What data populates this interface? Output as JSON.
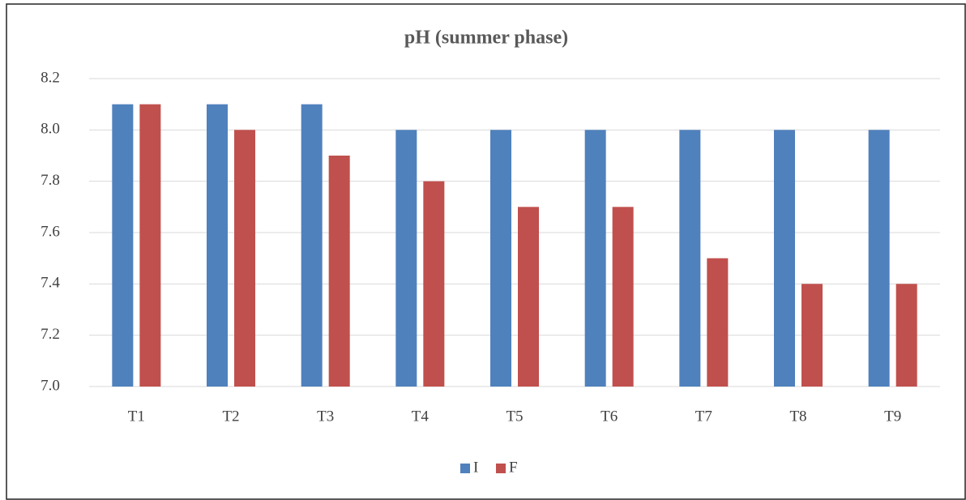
{
  "chart_data": {
    "type": "bar",
    "title": "pH (summer phase)",
    "categories": [
      "T1",
      "T2",
      "T3",
      "T4",
      "T5",
      "T6",
      "T7",
      "T8",
      "T9"
    ],
    "series": [
      {
        "name": "I",
        "color": "#4f81bd",
        "values": [
          8.1,
          8.1,
          8.1,
          8,
          8,
          8,
          8,
          8,
          8
        ]
      },
      {
        "name": "F",
        "color": "#c0504d",
        "values": [
          8.1,
          8,
          7.9,
          7.8,
          7.7,
          7.7,
          7.5,
          7.4,
          7.4
        ]
      }
    ],
    "ylim": [
      7,
      8.2
    ],
    "yticks": [
      {
        "value": 7,
        "label": "7.0"
      },
      7.2,
      7.4,
      7.6,
      7.8,
      {
        "value": 8,
        "label": "8.0"
      },
      8.2
    ],
    "grid": true,
    "legend": "bottom"
  }
}
